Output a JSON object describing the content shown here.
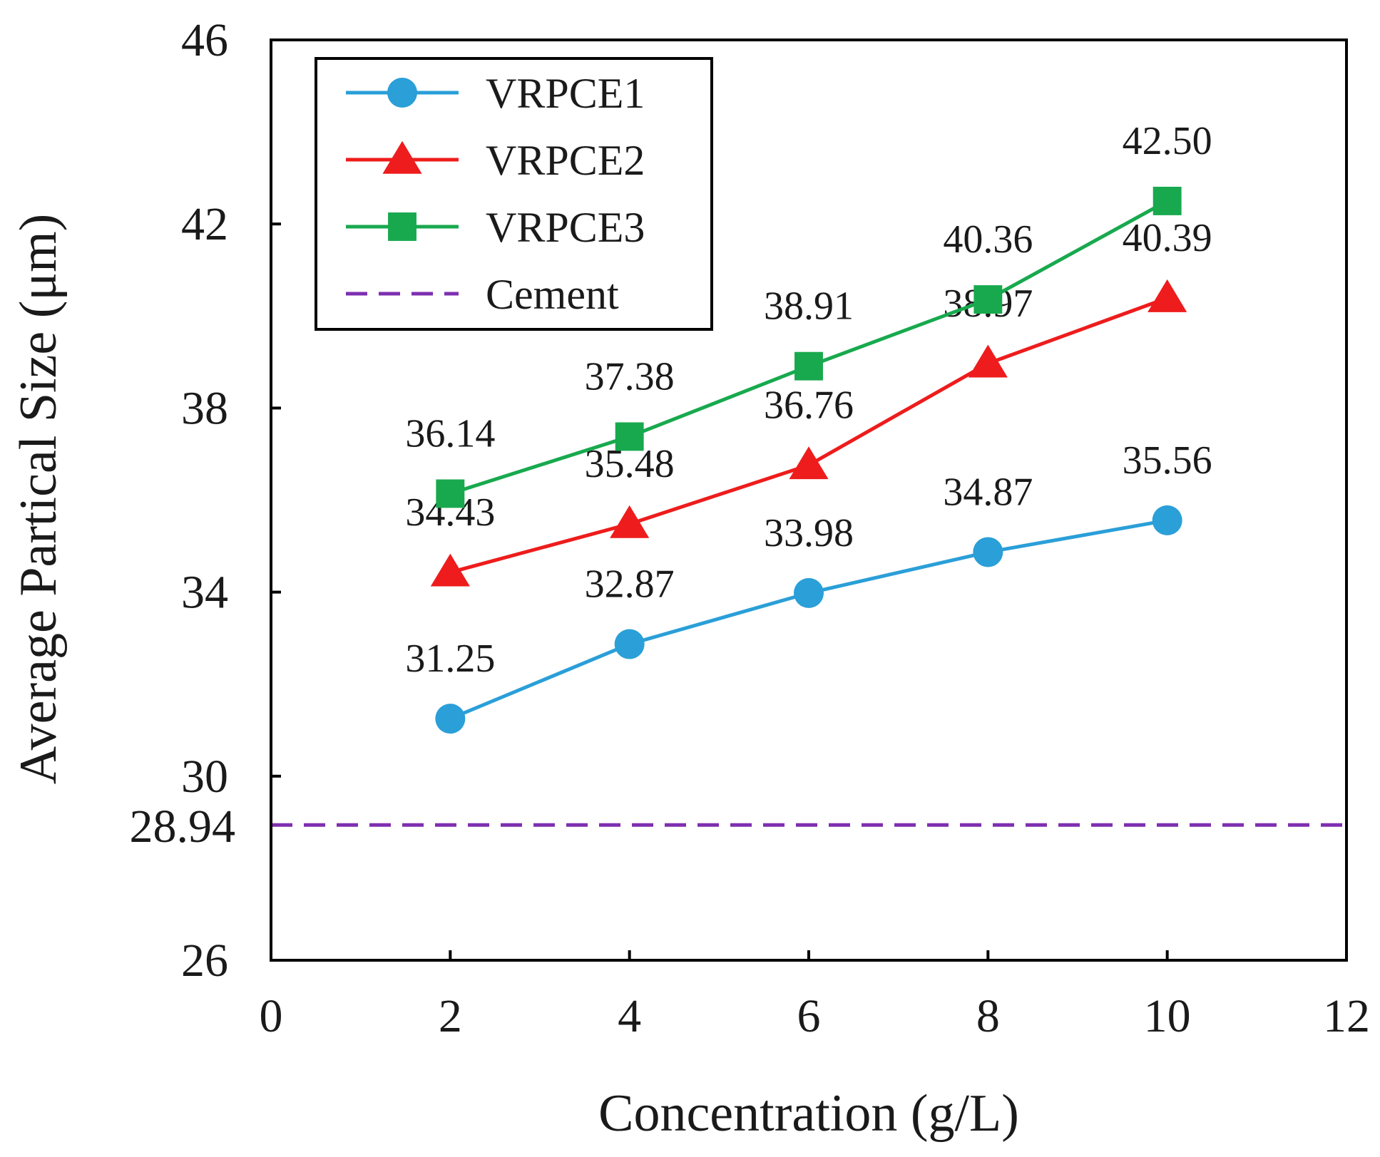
{
  "chart_data": {
    "type": "line",
    "title": "",
    "xlabel": "Concentration (g/L)",
    "ylabel": "Average Partical Size (μm)",
    "xlim": [
      0,
      12
    ],
    "ylim": [
      26,
      46
    ],
    "x_ticks": [
      "0",
      "2",
      "4",
      "6",
      "8",
      "10",
      "12"
    ],
    "y_ticks": [
      "26",
      "30",
      "34",
      "38",
      "42",
      "46"
    ],
    "grid": false,
    "legend_position": "top-left",
    "x": [
      2,
      4,
      6,
      8,
      10
    ],
    "series": [
      {
        "name": "VRPCE1",
        "color": "#2a9fd8",
        "marker": "circle",
        "values": [
          31.25,
          32.87,
          33.98,
          34.87,
          35.56
        ],
        "labels": [
          "31.25",
          "32.87",
          "33.98",
          "34.87",
          "35.56"
        ]
      },
      {
        "name": "VRPCE2",
        "color": "#ee1c1c",
        "marker": "triangle",
        "values": [
          34.43,
          35.48,
          36.76,
          38.97,
          40.39
        ],
        "labels": [
          "34.43",
          "35.48",
          "36.76",
          "38.97",
          "40.39"
        ]
      },
      {
        "name": "VRPCE3",
        "color": "#18a94e",
        "marker": "square",
        "values": [
          36.14,
          37.38,
          38.91,
          40.36,
          42.5
        ],
        "labels": [
          "36.14",
          "37.38",
          "38.91",
          "40.36",
          "42.50"
        ]
      }
    ],
    "reference_line": {
      "name": "Cement",
      "value": 28.94,
      "label": "28.94",
      "color": "#7e2fb0",
      "style": "dashed"
    }
  }
}
